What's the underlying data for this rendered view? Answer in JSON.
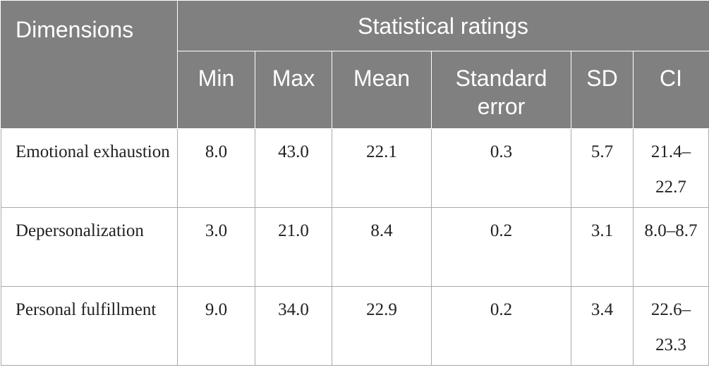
{
  "table": {
    "header": {
      "title": "Dimensions",
      "group": "Statistical ratings",
      "columns": [
        "Min",
        "Max",
        "Mean",
        "Standard error",
        "SD",
        "CI"
      ]
    },
    "rows": [
      {
        "label": "Emotional exhaustion",
        "values": [
          "8.0",
          "43.0",
          "22.1",
          "0.3",
          "5.7",
          "21.4–22.7"
        ]
      },
      {
        "label": "Depersonalization",
        "values": [
          "3.0",
          "21.0",
          "8.4",
          "0.2",
          "3.1",
          "8.0–8.7"
        ]
      },
      {
        "label": "Personal fulfillment",
        "values": [
          "9.0",
          "34.0",
          "22.9",
          "0.2",
          "3.4",
          "22.6–23.3"
        ]
      }
    ]
  }
}
